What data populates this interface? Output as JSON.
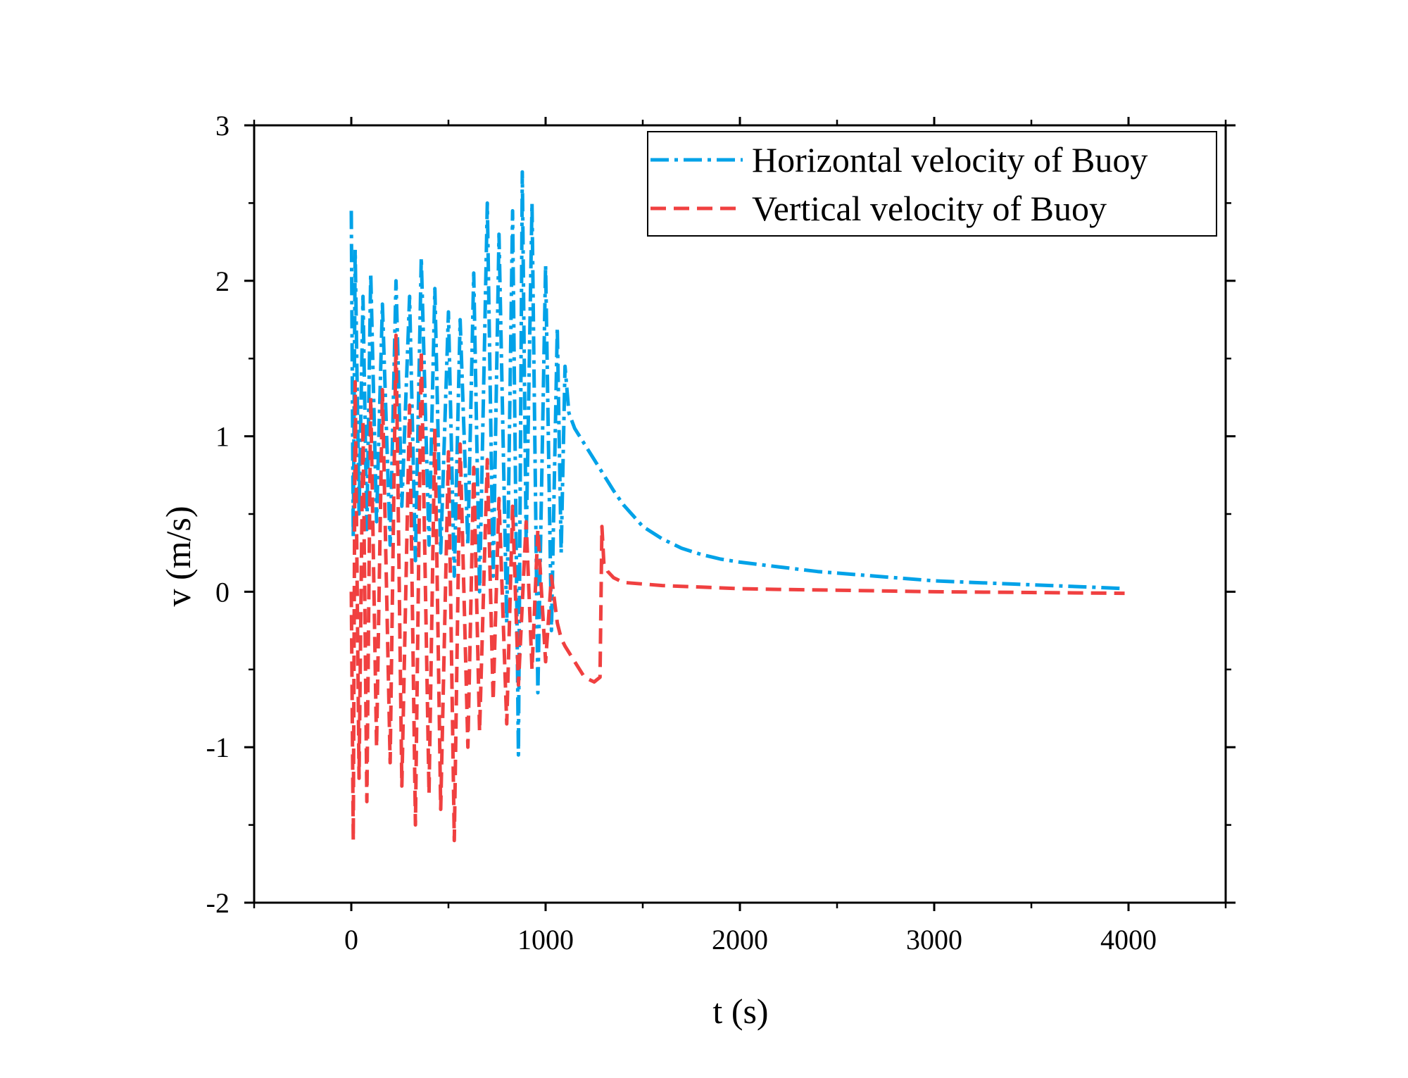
{
  "chart_data": {
    "type": "line",
    "title": "",
    "xlabel": "t (s)",
    "ylabel": "v (m/s)",
    "xlim": [
      -500,
      4500
    ],
    "ylim": [
      -2,
      3
    ],
    "xticks": [
      0,
      1000,
      2000,
      3000,
      4000
    ],
    "xtick_labels": [
      "0",
      "1000",
      "2000",
      "3000",
      "4000"
    ],
    "yticks": [
      -2,
      -1,
      0,
      1,
      2,
      3
    ],
    "ytick_labels": [
      "-2",
      "-1",
      "0",
      "1",
      "2",
      "3"
    ],
    "grid": false,
    "legend_position": "top-right",
    "series": [
      {
        "name": "Horizontal velocity of Buoy",
        "color": "#00a2e8",
        "line_style": "dash-dot",
        "x": [
          0,
          10,
          20,
          40,
          60,
          80,
          100,
          130,
          160,
          200,
          230,
          260,
          300,
          330,
          360,
          400,
          430,
          460,
          500,
          530,
          560,
          600,
          630,
          660,
          700,
          730,
          760,
          800,
          830,
          860,
          880,
          900,
          930,
          960,
          1000,
          1030,
          1060,
          1080,
          1100,
          1120,
          1150,
          1200,
          1250,
          1300,
          1350,
          1400,
          1450,
          1500,
          1600,
          1700,
          1800,
          1900,
          2000,
          2200,
          2400,
          2600,
          2800,
          3000,
          3200,
          3400,
          3600,
          3800,
          3980
        ],
        "y": [
          2.45,
          0.35,
          2.2,
          0.5,
          1.9,
          0.4,
          2.05,
          0.45,
          1.85,
          0.3,
          2.0,
          0.55,
          1.9,
          0.2,
          2.15,
          0.3,
          1.95,
          0.25,
          1.8,
          0.1,
          1.75,
          0.3,
          2.05,
          0.0,
          2.5,
          0.1,
          2.3,
          -0.2,
          2.45,
          -1.05,
          2.7,
          0.3,
          2.5,
          -0.65,
          2.1,
          -0.25,
          1.7,
          0.25,
          1.45,
          1.15,
          1.05,
          0.95,
          0.85,
          0.75,
          0.65,
          0.56,
          0.49,
          0.42,
          0.34,
          0.28,
          0.24,
          0.21,
          0.19,
          0.16,
          0.13,
          0.11,
          0.09,
          0.07,
          0.06,
          0.05,
          0.04,
          0.03,
          0.02
        ]
      },
      {
        "name": "Vertical velocity of Buoy",
        "color": "#f04040",
        "line_style": "dashed",
        "x": [
          0,
          10,
          20,
          40,
          60,
          80,
          100,
          130,
          160,
          200,
          230,
          260,
          300,
          330,
          360,
          400,
          430,
          460,
          500,
          530,
          560,
          600,
          630,
          660,
          700,
          730,
          760,
          800,
          830,
          860,
          900,
          930,
          960,
          1000,
          1030,
          1060,
          1080,
          1100,
          1150,
          1200,
          1250,
          1280,
          1290,
          1300,
          1320,
          1350,
          1400,
          1500,
          1600,
          1800,
          2000,
          2200,
          2500,
          3000,
          3500,
          3980
        ],
        "y": [
          0.0,
          -1.6,
          1.35,
          -1.2,
          1.1,
          -1.35,
          1.25,
          -1.0,
          1.3,
          -1.1,
          1.65,
          -1.25,
          1.2,
          -1.5,
          1.55,
          -1.3,
          1.05,
          -1.4,
          0.9,
          -1.6,
          0.95,
          -1.0,
          0.8,
          -0.9,
          0.85,
          -0.7,
          0.6,
          -0.85,
          0.55,
          -0.6,
          0.45,
          -0.5,
          0.4,
          -0.45,
          0.1,
          -0.2,
          -0.3,
          -0.35,
          -0.45,
          -0.55,
          -0.58,
          -0.55,
          0.42,
          0.18,
          0.13,
          0.09,
          0.06,
          0.05,
          0.04,
          0.03,
          0.02,
          0.015,
          0.01,
          0.0,
          -0.005,
          -0.01
        ]
      }
    ]
  }
}
